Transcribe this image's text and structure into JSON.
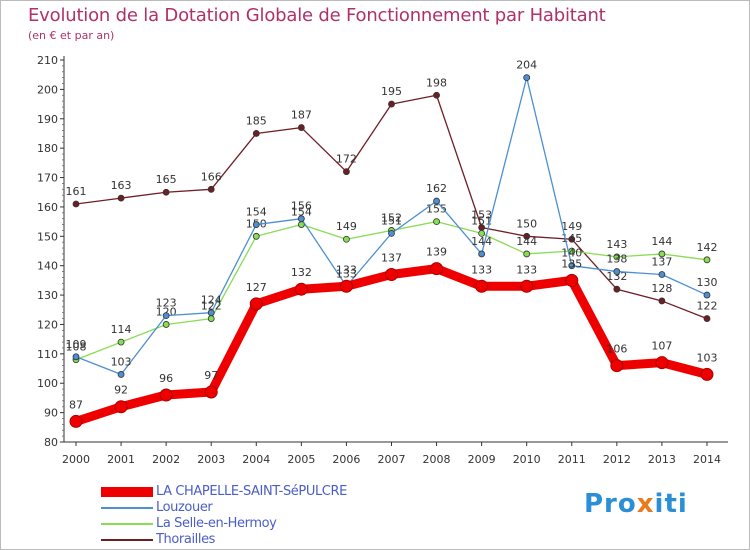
{
  "title": "Evolution de la Dotation Globale de Fonctionnement par Habitant",
  "subtitle": "(en € et par an)",
  "brand": {
    "pre": "Pro",
    "x": "x",
    "post": "iti"
  },
  "chart_data": {
    "type": "line",
    "title": "Evolution de la Dotation Globale de Fonctionnement par Habitant",
    "subtitle": "(en € et par an)",
    "xlabel": "",
    "ylabel": "",
    "ylim": [
      80,
      210
    ],
    "yticks": [
      80,
      90,
      100,
      110,
      120,
      130,
      140,
      150,
      160,
      170,
      180,
      190,
      200,
      210
    ],
    "grid": false,
    "legend_position": "bottom-left",
    "categories": [
      "2000",
      "2001",
      "2002",
      "2003",
      "2004",
      "2005",
      "2006",
      "2007",
      "2008",
      "2009",
      "2010",
      "2011",
      "2012",
      "2013",
      "2014"
    ],
    "series": [
      {
        "name": "Thorailles",
        "color": "#6e1f25",
        "values": [
          161,
          163,
          165,
          166,
          185,
          187,
          172,
          195,
          198,
          153,
          150,
          149,
          132,
          128,
          122
        ]
      },
      {
        "name": "La Selle-en-Hermoy",
        "color": "#88dd55",
        "values": [
          108,
          114,
          120,
          122,
          150,
          154,
          149,
          152,
          155,
          151,
          144,
          145,
          143,
          144,
          142
        ]
      },
      {
        "name": "Louzouer",
        "color": "#4d8fd1",
        "values": [
          109,
          103,
          123,
          124,
          154,
          156,
          133,
          151,
          162,
          144,
          204,
          140,
          138,
          137,
          130
        ]
      },
      {
        "name": "LA CHAPELLE-SAINT-SéPULCRE",
        "color": "#ee0000",
        "values": [
          87,
          92,
          96,
          97,
          127,
          132,
          133,
          137,
          139,
          133,
          133,
          135,
          106,
          107,
          103
        ]
      }
    ]
  }
}
